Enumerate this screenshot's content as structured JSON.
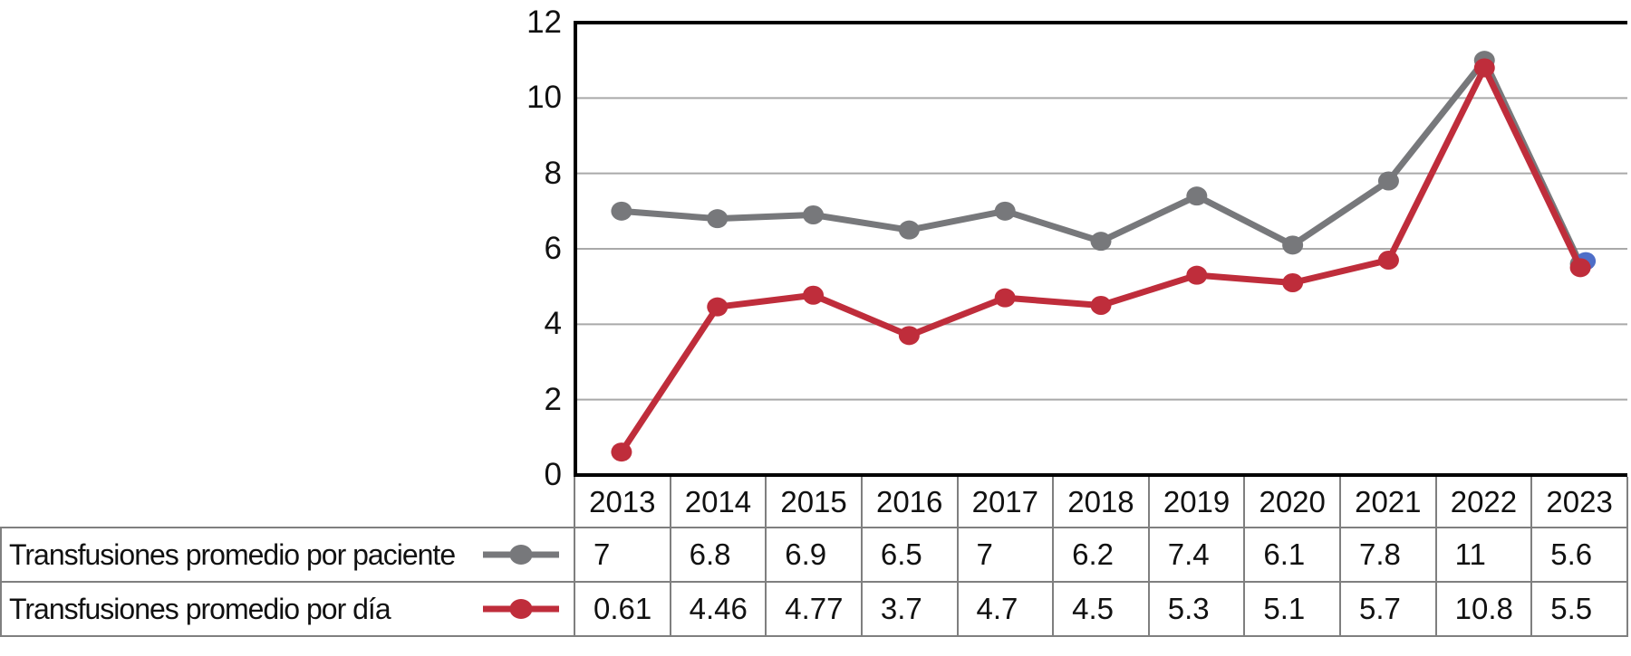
{
  "chart_data": {
    "type": "line",
    "title": "",
    "xlabel": "",
    "ylabel": "",
    "categories": [
      "2013",
      "2014",
      "2015",
      "2016",
      "2017",
      "2018",
      "2019",
      "2020",
      "2021",
      "2022",
      "2023"
    ],
    "series": [
      {
        "name": "Transfusiones promedio por paciente",
        "color": "#77787b",
        "values": [
          7,
          6.8,
          6.9,
          6.5,
          7,
          6.2,
          7.4,
          6.1,
          7.8,
          11,
          5.6
        ]
      },
      {
        "name": "Transfusiones promedio por día",
        "color": "#bf2d3b",
        "values": [
          0.61,
          4.46,
          4.77,
          3.7,
          4.7,
          4.5,
          5.3,
          5.1,
          5.7,
          10.8,
          5.5
        ]
      }
    ],
    "ylim": [
      0,
      12
    ],
    "yticks": [
      0,
      2,
      4,
      6,
      8,
      10,
      12
    ],
    "grid": true,
    "legend_position": "table-rows-left",
    "hidden_marker": {
      "category": "2023",
      "approx_value": 5.65,
      "color": "#4e6ec8"
    },
    "colors": {
      "frame": "#000000",
      "gridline": "#a9a9a9",
      "table_border": "#7f7f7f",
      "text": "#111111",
      "background": "#ffffff"
    }
  }
}
